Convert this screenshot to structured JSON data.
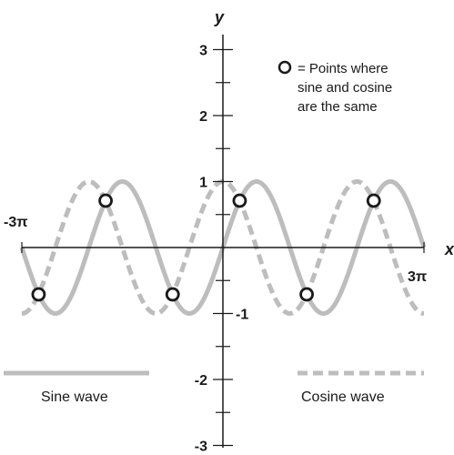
{
  "chart_data": {
    "type": "line",
    "xlabel": "x",
    "ylabel": "y",
    "xlim": [
      "-3π",
      "3π"
    ],
    "ylim": [
      -3,
      3
    ],
    "x_tick_labels": [
      "-3π",
      "3π"
    ],
    "y_tick_labels": [
      "3",
      "2",
      "1",
      "-1",
      "-2",
      "-3"
    ],
    "grid": false,
    "series": [
      {
        "name": "Sine wave",
        "function": "sin(x)",
        "color": "#bdbdbd",
        "style": "solid"
      },
      {
        "name": "Cosine wave",
        "function": "cos(x)",
        "color": "#bdbdbd",
        "style": "dashed"
      }
    ],
    "intersections": {
      "marker": "open-circle",
      "points": [
        {
          "x": "-11π/4",
          "y": -0.71
        },
        {
          "x": "-7π/4",
          "y": 0.71
        },
        {
          "x": "-3π/4",
          "y": -0.71
        },
        {
          "x": "π/4",
          "y": 0.71
        },
        {
          "x": "5π/4",
          "y": -0.71
        },
        {
          "x": "9π/4",
          "y": 0.71
        }
      ]
    },
    "annotation": {
      "symbol": "O",
      "lines": [
        "= Points where",
        "sine and cosine",
        "are the same"
      ]
    }
  },
  "colors": {
    "axis": "#1a1a1a",
    "curve": "#bdbdbd",
    "marker_stroke": "#1a1a1a"
  }
}
